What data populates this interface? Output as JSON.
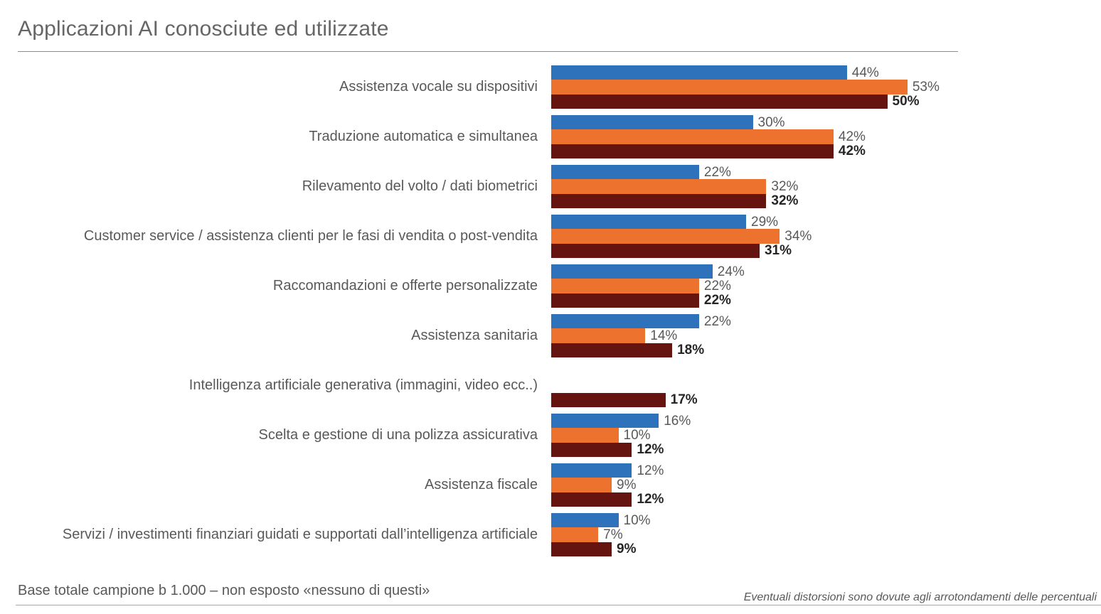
{
  "title": "Applicazioni AI conosciute ed utilizzate",
  "footer": {
    "base_note": "Base totale campione b 1.000 – non esposto «nessuno di questi»",
    "rounding_note": "Eventuali distorsioni sono dovute agli arrotondamenti delle percentuali"
  },
  "colors": {
    "blue": "#2E72BC",
    "orange": "#EC722D",
    "dark_red": "#651410"
  },
  "chart_data": {
    "type": "bar",
    "orientation": "horizontal",
    "title": "Applicazioni AI conosciute ed utilizzate",
    "xlabel": "",
    "ylabel": "",
    "xlim": [
      0,
      55
    ],
    "grid": false,
    "legend": "none",
    "value_suffix": "%",
    "categories": [
      "Assistenza vocale su dispositivi",
      "Traduzione automatica e simultanea",
      "Rilevamento del volto / dati biometrici",
      "Customer service / assistenza clienti per le fasi di vendita o post-vendita",
      "Raccomandazioni e offerte personalizzate",
      "Assistenza sanitaria",
      "Intelligenza artificiale generativa (immagini, video ecc..)",
      "Scelta e gestione di una polizza assicurativa",
      "Assistenza fiscale",
      "Servizi / investimenti finanziari guidati e supportati dall’intelligenza artificiale"
    ],
    "series": [
      {
        "color_key": "blue",
        "values": [
          44,
          30,
          22,
          29,
          24,
          22,
          null,
          16,
          12,
          10
        ]
      },
      {
        "color_key": "orange",
        "values": [
          53,
          42,
          32,
          34,
          22,
          14,
          null,
          10,
          9,
          7
        ]
      },
      {
        "color_key": "dark_red",
        "values": [
          50,
          42,
          32,
          31,
          22,
          18,
          17,
          12,
          12,
          9
        ]
      }
    ]
  }
}
